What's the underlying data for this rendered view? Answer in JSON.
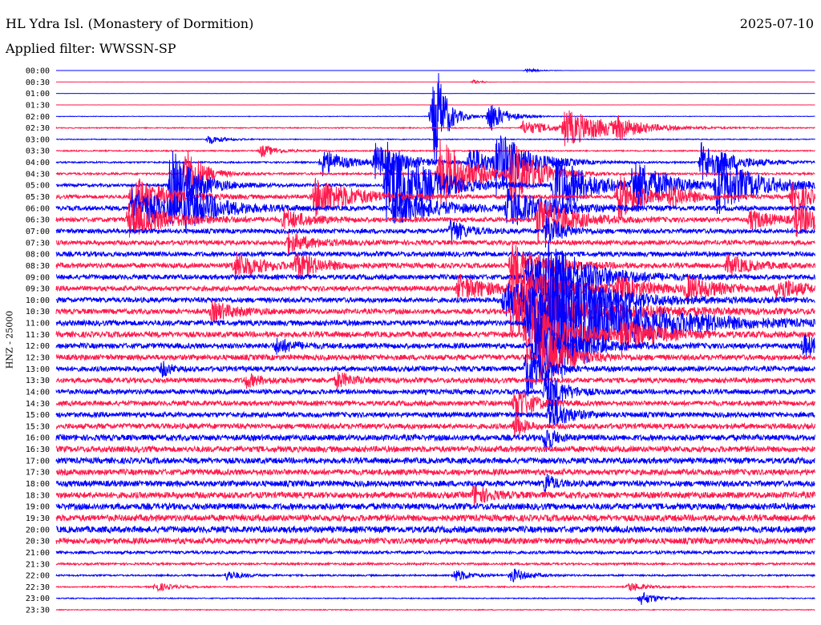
{
  "header": {
    "station": "HL Ydra Isl. (Monastery of Dormition)",
    "date": "2025-07-10",
    "filter": "Applied filter: WWSSN-SP",
    "channel": "HNZ - 25000"
  },
  "chart_data": {
    "type": "helicorder",
    "title": "HL Ydra Isl. (Monastery of Dormition)",
    "date": "2025-07-10",
    "filter": "WWSSN-SP",
    "ylabel": "HNZ - 25000",
    "colors": {
      "even_trace": "#0000ff",
      "odd_trace": "#ff1a4d",
      "background": "#ffffff"
    },
    "rows": [
      {
        "time": "00:00",
        "noise": 0.05
      },
      {
        "time": "00:30",
        "noise": 0.08
      },
      {
        "time": "01:00",
        "noise": 0.05
      },
      {
        "time": "01:30",
        "noise": 0.08
      },
      {
        "time": "02:00",
        "noise": 0.3
      },
      {
        "time": "02:30",
        "noise": 0.6
      },
      {
        "time": "03:00",
        "noise": 0.5
      },
      {
        "time": "03:30",
        "noise": 0.8
      },
      {
        "time": "04:00",
        "noise": 1.0
      },
      {
        "time": "04:30",
        "noise": 1.3
      },
      {
        "time": "05:00",
        "noise": 1.8
      },
      {
        "time": "05:30",
        "noise": 2.3
      },
      {
        "time": "06:00",
        "noise": 2.8
      },
      {
        "time": "06:30",
        "noise": 2.8
      },
      {
        "time": "07:00",
        "noise": 2.8
      },
      {
        "time": "07:30",
        "noise": 2.8
      },
      {
        "time": "08:00",
        "noise": 3.0
      },
      {
        "time": "08:30",
        "noise": 3.0
      },
      {
        "time": "09:00",
        "noise": 3.0
      },
      {
        "time": "09:30",
        "noise": 3.0
      },
      {
        "time": "10:00",
        "noise": 3.1
      },
      {
        "time": "10:30",
        "noise": 3.1
      },
      {
        "time": "11:00",
        "noise": 3.3
      },
      {
        "time": "11:30",
        "noise": 3.5
      },
      {
        "time": "12:00",
        "noise": 3.3
      },
      {
        "time": "12:30",
        "noise": 3.3
      },
      {
        "time": "13:00",
        "noise": 3.1
      },
      {
        "time": "13:30",
        "noise": 3.1
      },
      {
        "time": "14:00",
        "noise": 3.0
      },
      {
        "time": "14:30",
        "noise": 3.0
      },
      {
        "time": "15:00",
        "noise": 3.1
      },
      {
        "time": "15:30",
        "noise": 3.3
      },
      {
        "time": "16:00",
        "noise": 3.6
      },
      {
        "time": "16:30",
        "noise": 3.6
      },
      {
        "time": "17:00",
        "noise": 3.6
      },
      {
        "time": "17:30",
        "noise": 3.6
      },
      {
        "time": "18:00",
        "noise": 3.6
      },
      {
        "time": "18:30",
        "noise": 3.8
      },
      {
        "time": "19:00",
        "noise": 3.9
      },
      {
        "time": "19:30",
        "noise": 3.9
      },
      {
        "time": "20:00",
        "noise": 3.9
      },
      {
        "time": "20:30",
        "noise": 3.6
      },
      {
        "time": "21:00",
        "noise": 1.8
      },
      {
        "time": "21:30",
        "noise": 1.3
      },
      {
        "time": "22:00",
        "noise": 1.0
      },
      {
        "time": "22:30",
        "noise": 0.8
      },
      {
        "time": "23:00",
        "noise": 0.6
      },
      {
        "time": "23:30",
        "noise": 0.5
      }
    ],
    "events": [
      {
        "row": 0,
        "x": 0.62,
        "amp": 3,
        "dur": 0.015
      },
      {
        "row": 1,
        "x": 0.55,
        "amp": 3,
        "dur": 0.01
      },
      {
        "row": 4,
        "x": 0.5,
        "amp": 55,
        "dur": 0.01
      },
      {
        "row": 4,
        "x": 0.495,
        "amp": 30,
        "dur": 0.02
      },
      {
        "row": 4,
        "x": 0.57,
        "amp": 22,
        "dur": 0.02
      },
      {
        "row": 5,
        "x": 0.67,
        "amp": 22,
        "dur": 0.06
      },
      {
        "row": 5,
        "x": 0.615,
        "amp": 9,
        "dur": 0.04
      },
      {
        "row": 5,
        "x": 0.74,
        "amp": 10,
        "dur": 0.02
      },
      {
        "row": 6,
        "x": 0.2,
        "amp": 6,
        "dur": 0.02
      },
      {
        "row": 7,
        "x": 0.27,
        "amp": 8,
        "dur": 0.02
      },
      {
        "row": 8,
        "x": 0.35,
        "amp": 18,
        "dur": 0.03
      },
      {
        "row": 8,
        "x": 0.42,
        "amp": 22,
        "dur": 0.04
      },
      {
        "row": 8,
        "x": 0.545,
        "amp": 20,
        "dur": 0.03
      },
      {
        "row": 8,
        "x": 0.58,
        "amp": 38,
        "dur": 0.04
      },
      {
        "row": 8,
        "x": 0.85,
        "amp": 25,
        "dur": 0.04
      },
      {
        "row": 9,
        "x": 0.505,
        "amp": 45,
        "dur": 0.04
      },
      {
        "row": 9,
        "x": 0.17,
        "amp": 40,
        "dur": 0.02
      },
      {
        "row": 9,
        "x": 0.6,
        "amp": 42,
        "dur": 0.03
      },
      {
        "row": 10,
        "x": 0.15,
        "amp": 50,
        "dur": 0.03
      },
      {
        "row": 10,
        "x": 0.435,
        "amp": 60,
        "dur": 0.05
      },
      {
        "row": 10,
        "x": 0.655,
        "amp": 45,
        "dur": 0.04
      },
      {
        "row": 10,
        "x": 0.87,
        "amp": 35,
        "dur": 0.05
      },
      {
        "row": 10,
        "x": 0.76,
        "amp": 35,
        "dur": 0.04
      },
      {
        "row": 11,
        "x": 0.1,
        "amp": 28,
        "dur": 0.04
      },
      {
        "row": 11,
        "x": 0.34,
        "amp": 25,
        "dur": 0.05
      },
      {
        "row": 11,
        "x": 0.74,
        "amp": 30,
        "dur": 0.03
      },
      {
        "row": 11,
        "x": 0.81,
        "amp": 12,
        "dur": 0.03
      },
      {
        "row": 11,
        "x": 0.97,
        "amp": 18,
        "dur": 0.03
      },
      {
        "row": 12,
        "x": 0.1,
        "amp": 28,
        "dur": 0.05
      },
      {
        "row": 12,
        "x": 0.17,
        "amp": 22,
        "dur": 0.04
      },
      {
        "row": 12,
        "x": 0.445,
        "amp": 22,
        "dur": 0.05
      },
      {
        "row": 12,
        "x": 0.595,
        "amp": 25,
        "dur": 0.05
      },
      {
        "row": 13,
        "x": 0.095,
        "amp": 22,
        "dur": 0.05
      },
      {
        "row": 13,
        "x": 0.3,
        "amp": 12,
        "dur": 0.03
      },
      {
        "row": 13,
        "x": 0.635,
        "amp": 30,
        "dur": 0.04
      },
      {
        "row": 13,
        "x": 0.915,
        "amp": 12,
        "dur": 0.03
      },
      {
        "row": 13,
        "x": 0.975,
        "amp": 18,
        "dur": 0.04
      },
      {
        "row": 14,
        "x": 0.52,
        "amp": 15,
        "dur": 0.02
      },
      {
        "row": 14,
        "x": 0.645,
        "amp": 20,
        "dur": 0.02
      },
      {
        "row": 15,
        "x": 0.305,
        "amp": 12,
        "dur": 0.03
      },
      {
        "row": 17,
        "x": 0.235,
        "amp": 18,
        "dur": 0.03
      },
      {
        "row": 17,
        "x": 0.315,
        "amp": 16,
        "dur": 0.03
      },
      {
        "row": 17,
        "x": 0.6,
        "amp": 30,
        "dur": 0.04
      },
      {
        "row": 17,
        "x": 0.885,
        "amp": 12,
        "dur": 0.03
      },
      {
        "row": 18,
        "x": 0.62,
        "amp": 25,
        "dur": 0.05
      },
      {
        "row": 18,
        "x": 0.64,
        "amp": 38,
        "dur": 0.05
      },
      {
        "row": 19,
        "x": 0.53,
        "amp": 16,
        "dur": 0.04
      },
      {
        "row": 19,
        "x": 0.6,
        "amp": 35,
        "dur": 0.05
      },
      {
        "row": 19,
        "x": 0.74,
        "amp": 12,
        "dur": 0.04
      },
      {
        "row": 19,
        "x": 0.83,
        "amp": 14,
        "dur": 0.04
      },
      {
        "row": 19,
        "x": 0.95,
        "amp": 14,
        "dur": 0.03
      },
      {
        "row": 20,
        "x": 0.59,
        "amp": 25,
        "dur": 0.07
      },
      {
        "row": 20,
        "x": 0.645,
        "amp": 35,
        "dur": 0.06
      },
      {
        "row": 21,
        "x": 0.6,
        "amp": 32,
        "dur": 0.1
      },
      {
        "row": 21,
        "x": 0.205,
        "amp": 12,
        "dur": 0.03
      },
      {
        "row": 22,
        "x": 0.62,
        "amp": 45,
        "dur": 0.1
      },
      {
        "row": 22,
        "x": 0.65,
        "amp": 50,
        "dur": 0.08
      },
      {
        "row": 23,
        "x": 0.745,
        "amp": 20,
        "dur": 0.04
      },
      {
        "row": 23,
        "x": 0.62,
        "amp": 40,
        "dur": 0.05
      },
      {
        "row": 24,
        "x": 0.63,
        "amp": 45,
        "dur": 0.04
      },
      {
        "row": 24,
        "x": 0.985,
        "amp": 14,
        "dur": 0.02
      },
      {
        "row": 24,
        "x": 0.29,
        "amp": 10,
        "dur": 0.02
      },
      {
        "row": 25,
        "x": 0.64,
        "amp": 40,
        "dur": 0.03
      },
      {
        "row": 26,
        "x": 0.62,
        "amp": 35,
        "dur": 0.02
      },
      {
        "row": 26,
        "x": 0.14,
        "amp": 10,
        "dur": 0.01
      },
      {
        "row": 27,
        "x": 0.37,
        "amp": 10,
        "dur": 0.02
      },
      {
        "row": 27,
        "x": 0.25,
        "amp": 8,
        "dur": 0.02
      },
      {
        "row": 28,
        "x": 0.645,
        "amp": 30,
        "dur": 0.02
      },
      {
        "row": 29,
        "x": 0.605,
        "amp": 25,
        "dur": 0.02
      },
      {
        "row": 30,
        "x": 0.65,
        "amp": 25,
        "dur": 0.02
      },
      {
        "row": 31,
        "x": 0.605,
        "amp": 18,
        "dur": 0.01
      },
      {
        "row": 32,
        "x": 0.645,
        "amp": 20,
        "dur": 0.01
      },
      {
        "row": 36,
        "x": 0.645,
        "amp": 14,
        "dur": 0.01
      },
      {
        "row": 37,
        "x": 0.55,
        "amp": 12,
        "dur": 0.02
      },
      {
        "row": 44,
        "x": 0.525,
        "amp": 8,
        "dur": 0.02
      },
      {
        "row": 44,
        "x": 0.6,
        "amp": 9,
        "dur": 0.02
      },
      {
        "row": 44,
        "x": 0.225,
        "amp": 6,
        "dur": 0.02
      },
      {
        "row": 45,
        "x": 0.13,
        "amp": 6,
        "dur": 0.02
      },
      {
        "row": 45,
        "x": 0.755,
        "amp": 6,
        "dur": 0.02
      },
      {
        "row": 46,
        "x": 0.77,
        "amp": 9,
        "dur": 0.02
      }
    ]
  }
}
